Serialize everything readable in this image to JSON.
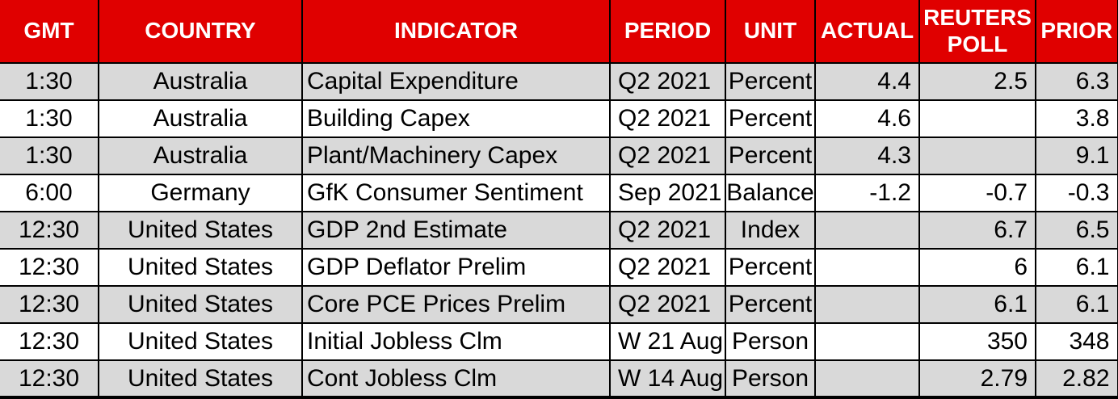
{
  "chart_data": {
    "type": "table",
    "columns": [
      {
        "key": "gmt",
        "label": "GMT"
      },
      {
        "key": "country",
        "label": "COUNTRY"
      },
      {
        "key": "indicator",
        "label": "INDICATOR"
      },
      {
        "key": "period",
        "label": "PERIOD"
      },
      {
        "key": "unit",
        "label": "UNIT"
      },
      {
        "key": "actual",
        "label": "ACTUAL"
      },
      {
        "key": "reuters_poll",
        "label": "REUTERS POLL"
      },
      {
        "key": "prior",
        "label": "PRIOR"
      }
    ],
    "rows": [
      {
        "gmt": "1:30",
        "country": "Australia",
        "indicator": "Capital Expenditure",
        "period": "Q2 2021",
        "unit": "Percent",
        "actual": "4.4",
        "reuters_poll": "2.5",
        "prior": "6.3"
      },
      {
        "gmt": "1:30",
        "country": "Australia",
        "indicator": "Building Capex",
        "period": "Q2 2021",
        "unit": "Percent",
        "actual": "4.6",
        "reuters_poll": "",
        "prior": "3.8"
      },
      {
        "gmt": "1:30",
        "country": "Australia",
        "indicator": "Plant/Machinery Capex",
        "period": "Q2 2021",
        "unit": "Percent",
        "actual": "4.3",
        "reuters_poll": "",
        "prior": "9.1"
      },
      {
        "gmt": "6:00",
        "country": "Germany",
        "indicator": "GfK Consumer Sentiment",
        "period": "Sep 2021",
        "unit": "Balance",
        "actual": "-1.2",
        "reuters_poll": "-0.7",
        "prior": "-0.3"
      },
      {
        "gmt": "12:30",
        "country": "United States",
        "indicator": "GDP 2nd Estimate",
        "period": "Q2 2021",
        "unit": "Index",
        "actual": "",
        "reuters_poll": "6.7",
        "prior": "6.5"
      },
      {
        "gmt": "12:30",
        "country": "United States",
        "indicator": "GDP Deflator Prelim",
        "period": "Q2 2021",
        "unit": "Percent",
        "actual": "",
        "reuters_poll": "6",
        "prior": "6.1"
      },
      {
        "gmt": "12:30",
        "country": "United States",
        "indicator": "Core PCE Prices Prelim",
        "period": "Q2 2021",
        "unit": "Percent",
        "actual": "",
        "reuters_poll": "6.1",
        "prior": "6.1"
      },
      {
        "gmt": "12:30",
        "country": "United States",
        "indicator": "Initial Jobless Clm",
        "period": "W 21 Aug",
        "unit": "Person",
        "actual": "",
        "reuters_poll": "350",
        "prior": "348"
      },
      {
        "gmt": "12:30",
        "country": "United States",
        "indicator": "Cont Jobless Clm",
        "period": "W 14 Aug",
        "unit": "Person",
        "actual": "",
        "reuters_poll": "2.79",
        "prior": "2.82"
      }
    ],
    "layout_hints": {
      "header_bg": "#e00000",
      "header_text_color": "#ffffff",
      "alt_row_bg": "#d9d9d9",
      "row_bg": "#ffffff",
      "border_color": "#000000"
    }
  }
}
